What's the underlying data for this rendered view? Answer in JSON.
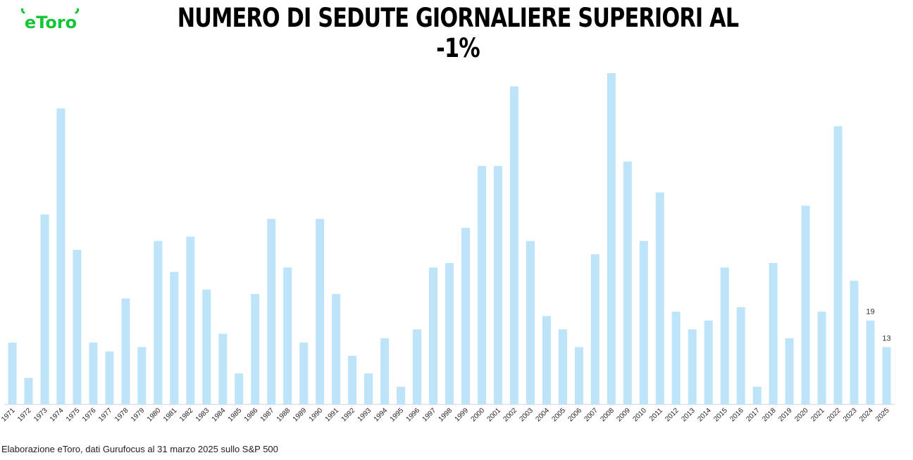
{
  "brand": {
    "logo_text": "eToro",
    "color": "#13c636"
  },
  "footer": {
    "note": "Elaborazione eToro, dati Gurufocus al 31 marzo 2025 sullo S&P 500"
  },
  "chart_data": {
    "type": "bar",
    "title": "NUMERO DI SEDUTE GIORNALIERE SUPERIORI AL -1%",
    "xlabel": "",
    "ylabel": "",
    "bar_color": "#bde4f9",
    "ylim": [
      0,
      75
    ],
    "grid": false,
    "categories": [
      "1971",
      "1972",
      "1973",
      "1974",
      "1975",
      "1976",
      "1977",
      "1978",
      "1979",
      "1980",
      "1981",
      "1982",
      "1983",
      "1984",
      "1985",
      "1986",
      "1987",
      "1988",
      "1989",
      "1990",
      "1991",
      "1992",
      "1993",
      "1994",
      "1995",
      "1996",
      "1997",
      "1998",
      "1999",
      "2000",
      "2001",
      "2002",
      "2003",
      "2004",
      "2005",
      "2006",
      "2007",
      "2008",
      "2009",
      "2010",
      "2011",
      "2012",
      "2013",
      "2014",
      "2015",
      "2016",
      "2017",
      "2018",
      "2019",
      "2020",
      "2021",
      "2022",
      "2023",
      "2024",
      "2025"
    ],
    "values": [
      14,
      6,
      43,
      67,
      35,
      14,
      12,
      24,
      13,
      37,
      30,
      38,
      26,
      16,
      7,
      25,
      42,
      31,
      14,
      42,
      25,
      11,
      7,
      15,
      4,
      17,
      31,
      32,
      40,
      54,
      54,
      72,
      37,
      20,
      17,
      13,
      34,
      75,
      55,
      37,
      48,
      21,
      17,
      19,
      31,
      22,
      4,
      32,
      15,
      45,
      21,
      63,
      28,
      19,
      13
    ],
    "data_labels": [
      {
        "category": "2024",
        "label": "19"
      },
      {
        "category": "2025",
        "label": "13"
      }
    ]
  }
}
